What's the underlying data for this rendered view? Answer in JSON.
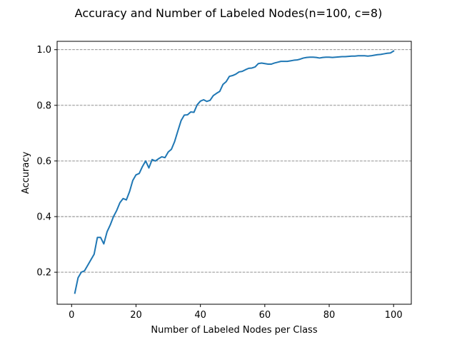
{
  "chart_data": {
    "type": "line",
    "title": "Accuracy and Number of Labeled Nodes(n=100, c=8)",
    "xlabel": "Number of Labeled Nodes per Class",
    "ylabel": "Accuracy",
    "xlim": [
      -4.5,
      105.5
    ],
    "ylim": [
      0.085,
      1.03
    ],
    "xticks": [
      0,
      20,
      40,
      60,
      80,
      100
    ],
    "yticks": [
      0.2,
      0.4,
      0.6,
      0.8,
      1.0
    ],
    "ytick_labels": [
      "0.2",
      "0.4",
      "0.6",
      "0.8",
      "1.0"
    ],
    "grid": "horizontal dashed",
    "line_color": "#1f77b4",
    "grid_color": "#808080",
    "series": [
      {
        "x": [
          1,
          2,
          3,
          4,
          5,
          6,
          7,
          8,
          9,
          10,
          11,
          12,
          13,
          14,
          15,
          16,
          17,
          18,
          19,
          20,
          21,
          22,
          23,
          24,
          25,
          26,
          27,
          28,
          29,
          30,
          31,
          32,
          33,
          34,
          35,
          36,
          37,
          38,
          39,
          40,
          41,
          42,
          43,
          44,
          45,
          46,
          47,
          48,
          49,
          50,
          51,
          52,
          53,
          54,
          55,
          56,
          57,
          58,
          59,
          60,
          61,
          62,
          63,
          64,
          65,
          66,
          67,
          68,
          69,
          70,
          71,
          72,
          73,
          74,
          75,
          76,
          77,
          78,
          79,
          80,
          81,
          82,
          83,
          84,
          85,
          86,
          87,
          88,
          89,
          90,
          91,
          92,
          93,
          94,
          95,
          96,
          97,
          98,
          99,
          100
        ],
        "values": [
          0.125,
          0.18,
          0.2,
          0.205,
          0.225,
          0.245,
          0.265,
          0.325,
          0.325,
          0.302,
          0.345,
          0.37,
          0.4,
          0.422,
          0.45,
          0.465,
          0.46,
          0.49,
          0.53,
          0.55,
          0.555,
          0.58,
          0.6,
          0.575,
          0.605,
          0.6,
          0.608,
          0.615,
          0.612,
          0.632,
          0.642,
          0.67,
          0.708,
          0.745,
          0.765,
          0.766,
          0.776,
          0.775,
          0.802,
          0.815,
          0.82,
          0.814,
          0.818,
          0.835,
          0.843,
          0.85,
          0.875,
          0.885,
          0.904,
          0.907,
          0.912,
          0.92,
          0.922,
          0.928,
          0.933,
          0.934,
          0.938,
          0.95,
          0.952,
          0.95,
          0.948,
          0.948,
          0.952,
          0.955,
          0.958,
          0.958,
          0.958,
          0.96,
          0.962,
          0.963,
          0.966,
          0.97,
          0.972,
          0.973,
          0.973,
          0.972,
          0.97,
          0.972,
          0.973,
          0.973,
          0.972,
          0.973,
          0.974,
          0.975,
          0.975,
          0.976,
          0.977,
          0.977,
          0.978,
          0.978,
          0.978,
          0.977,
          0.978,
          0.98,
          0.982,
          0.983,
          0.985,
          0.987,
          0.988,
          0.995
        ]
      }
    ]
  }
}
